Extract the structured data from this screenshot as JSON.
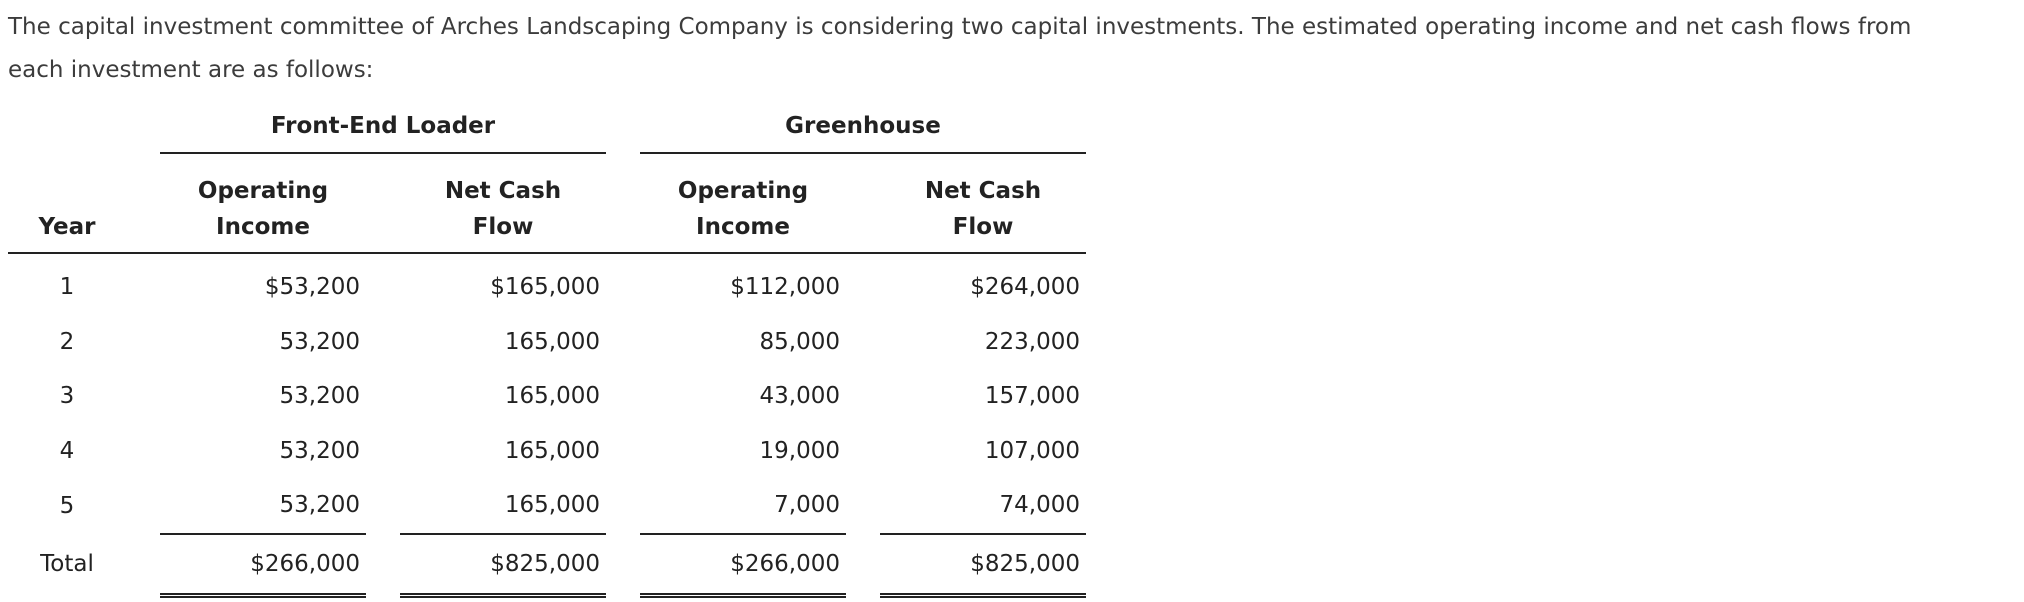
{
  "intro": {
    "line1": "The capital investment committee of Arches Landscaping Company is considering two capital investments. The estimated operating income and net cash flows from",
    "line2": "each investment are as follows:"
  },
  "table": {
    "groups": {
      "front_end_loader": "Front-End Loader",
      "greenhouse": "Greenhouse"
    },
    "headers": {
      "year": "Year",
      "op_income_1": "Operating",
      "op_income_2": "Income",
      "net_cash_1": "Net Cash",
      "net_cash_2": "Flow"
    },
    "rows": [
      {
        "year": "1",
        "fel_income": "$53,200",
        "fel_cash": "$165,000",
        "gh_income": "$112,000",
        "gh_cash": "$264,000"
      },
      {
        "year": "2",
        "fel_income": "53,200",
        "fel_cash": "165,000",
        "gh_income": "85,000",
        "gh_cash": "223,000"
      },
      {
        "year": "3",
        "fel_income": "53,200",
        "fel_cash": "165,000",
        "gh_income": "43,000",
        "gh_cash": "157,000"
      },
      {
        "year": "4",
        "fel_income": "53,200",
        "fel_cash": "165,000",
        "gh_income": "19,000",
        "gh_cash": "107,000"
      },
      {
        "year": "5",
        "fel_income": "53,200",
        "fel_cash": "165,000",
        "gh_income": "7,000",
        "gh_cash": "74,000"
      }
    ],
    "total": {
      "label": "Total",
      "fel_income": "$266,000",
      "fel_cash": "$825,000",
      "gh_income": "$266,000",
      "gh_cash": "$825,000"
    }
  }
}
